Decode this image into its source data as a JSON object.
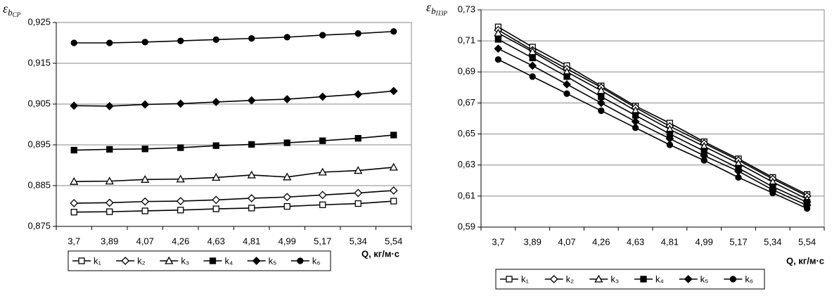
{
  "chart_data": [
    {
      "type": "line",
      "y_label": {
        "symbol": "ε",
        "sub": "b",
        "subsub": "CP"
      },
      "x_label": "Q, кг/м·с",
      "categories": [
        "3,7",
        "3,89",
        "4,07",
        "4,26",
        "4,63",
        "4,81",
        "4,99",
        "5,17",
        "5,34",
        "5,54"
      ],
      "ylim": [
        0.875,
        0.925
      ],
      "yticks": [
        {
          "value": 0.875,
          "label": "0,875"
        },
        {
          "value": 0.885,
          "label": "0,885"
        },
        {
          "value": 0.895,
          "label": "0,895"
        },
        {
          "value": 0.905,
          "label": "0,905"
        },
        {
          "value": 0.915,
          "label": "0,915"
        },
        {
          "value": 0.925,
          "label": "0,925"
        }
      ],
      "grid": true,
      "series": [
        {
          "name": "k₁",
          "color": "#000000",
          "marker": "square",
          "filled": false,
          "values": [
            0.8785,
            0.8786,
            0.8788,
            0.879,
            0.8793,
            0.8795,
            0.8799,
            0.8803,
            0.8806,
            0.8812
          ]
        },
        {
          "name": "k₂",
          "color": "#000000",
          "marker": "diamond",
          "filled": false,
          "values": [
            0.8807,
            0.8808,
            0.8811,
            0.8812,
            0.8815,
            0.8819,
            0.8822,
            0.8827,
            0.8832,
            0.8838
          ]
        },
        {
          "name": "k₃",
          "color": "#000000",
          "marker": "triangle",
          "filled": false,
          "values": [
            0.886,
            0.8861,
            0.8865,
            0.8866,
            0.887,
            0.8876,
            0.8871,
            0.8883,
            0.8887,
            0.8895
          ]
        },
        {
          "name": "k₄",
          "color": "#000000",
          "marker": "square",
          "filled": true,
          "values": [
            0.8937,
            0.8939,
            0.894,
            0.8943,
            0.8948,
            0.8951,
            0.8955,
            0.896,
            0.8966,
            0.8974
          ]
        },
        {
          "name": "k₅",
          "color": "#000000",
          "marker": "diamond",
          "filled": true,
          "values": [
            0.9046,
            0.9045,
            0.9049,
            0.9051,
            0.9055,
            0.9059,
            0.9062,
            0.9068,
            0.9074,
            0.9082
          ]
        },
        {
          "name": "k₆",
          "color": "#000000",
          "marker": "circle",
          "filled": true,
          "values": [
            0.92,
            0.92,
            0.9202,
            0.9205,
            0.9208,
            0.9211,
            0.9214,
            0.9219,
            0.9223,
            0.9228
          ]
        }
      ]
    },
    {
      "type": "line",
      "y_label": {
        "symbol": "ε",
        "sub": "b",
        "subsub": "ПЗР"
      },
      "x_label": "Q, кг/м·с",
      "categories": [
        "3,7",
        "3,89",
        "4,07",
        "4,26",
        "4,63",
        "4,81",
        "4,99",
        "5,17",
        "5,34",
        "5,54"
      ],
      "ylim": [
        0.59,
        0.73
      ],
      "yticks": [
        {
          "value": 0.59,
          "label": "0,59"
        },
        {
          "value": 0.61,
          "label": "0,61"
        },
        {
          "value": 0.63,
          "label": "0,63"
        },
        {
          "value": 0.65,
          "label": "0,65"
        },
        {
          "value": 0.67,
          "label": "0,67"
        },
        {
          "value": 0.69,
          "label": "0,69"
        },
        {
          "value": 0.71,
          "label": "0,71"
        },
        {
          "value": 0.73,
          "label": "0,73"
        }
      ],
      "grid": true,
      "series": [
        {
          "name": "k₁",
          "color": "#000000",
          "marker": "square",
          "filled": false,
          "values": [
            0.719,
            0.706,
            0.694,
            0.681,
            0.668,
            0.657,
            0.645,
            0.634,
            0.622,
            0.611
          ]
        },
        {
          "name": "k₂",
          "color": "#000000",
          "marker": "diamond",
          "filled": false,
          "values": [
            0.717,
            0.704,
            0.692,
            0.68,
            0.667,
            0.655,
            0.644,
            0.633,
            0.621,
            0.61
          ]
        },
        {
          "name": "k₃",
          "color": "#000000",
          "marker": "triangle",
          "filled": false,
          "values": [
            0.715,
            0.703,
            0.69,
            0.678,
            0.665,
            0.653,
            0.642,
            0.631,
            0.619,
            0.608
          ]
        },
        {
          "name": "k₄",
          "color": "#000000",
          "marker": "square",
          "filled": true,
          "values": [
            0.711,
            0.699,
            0.687,
            0.674,
            0.662,
            0.65,
            0.639,
            0.628,
            0.616,
            0.606
          ]
        },
        {
          "name": "k₅",
          "color": "#000000",
          "marker": "diamond",
          "filled": true,
          "values": [
            0.705,
            0.694,
            0.682,
            0.67,
            0.658,
            0.647,
            0.636,
            0.626,
            0.614,
            0.604
          ]
        },
        {
          "name": "k₆",
          "color": "#000000",
          "marker": "circle",
          "filled": true,
          "values": [
            0.698,
            0.687,
            0.676,
            0.665,
            0.654,
            0.643,
            0.633,
            0.622,
            0.612,
            0.602
          ]
        }
      ]
    }
  ]
}
